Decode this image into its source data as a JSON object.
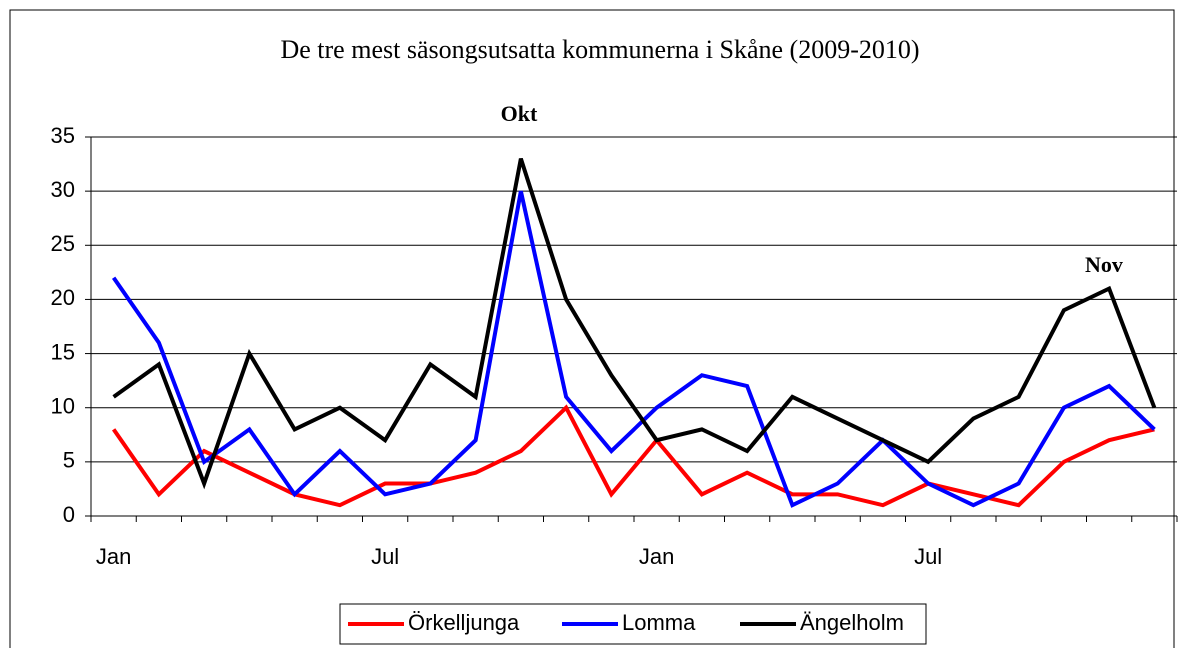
{
  "chart_data": {
    "type": "line",
    "title": "De tre mest säsongsutsatta kommunerna i Skåne (2009-2010)",
    "annotations": [
      "Okt",
      "Nov"
    ],
    "categories": [
      "Jan",
      null,
      null,
      null,
      null,
      null,
      "Jul",
      null,
      null,
      null,
      null,
      null,
      "Jan",
      null,
      null,
      null,
      null,
      null,
      "Jul",
      null,
      null,
      null,
      null,
      null
    ],
    "series": [
      {
        "name": "Örkelljunga",
        "color": "#ff0000",
        "values": [
          8,
          2,
          6,
          4,
          2,
          1,
          3,
          3,
          4,
          6,
          10,
          2,
          7,
          2,
          4,
          2,
          2,
          1,
          3,
          2,
          1,
          5,
          7,
          8
        ]
      },
      {
        "name": "Lomma",
        "color": "#0000ff",
        "values": [
          22,
          16,
          5,
          8,
          2,
          6,
          2,
          3,
          7,
          30,
          11,
          6,
          10,
          13,
          12,
          1,
          3,
          7,
          3,
          1,
          3,
          10,
          12,
          8
        ]
      },
      {
        "name": "Ängelholm",
        "color": "#000000",
        "values": [
          11,
          14,
          3,
          15,
          8,
          10,
          7,
          14,
          11,
          33,
          20,
          13,
          7,
          8,
          6,
          11,
          9,
          7,
          5,
          9,
          11,
          19,
          21,
          10
        ]
      }
    ],
    "ylim": [
      0,
      35
    ],
    "yticks": [
      0,
      5,
      10,
      15,
      20,
      25,
      30,
      35
    ],
    "grid": true,
    "legend": "bottom"
  }
}
